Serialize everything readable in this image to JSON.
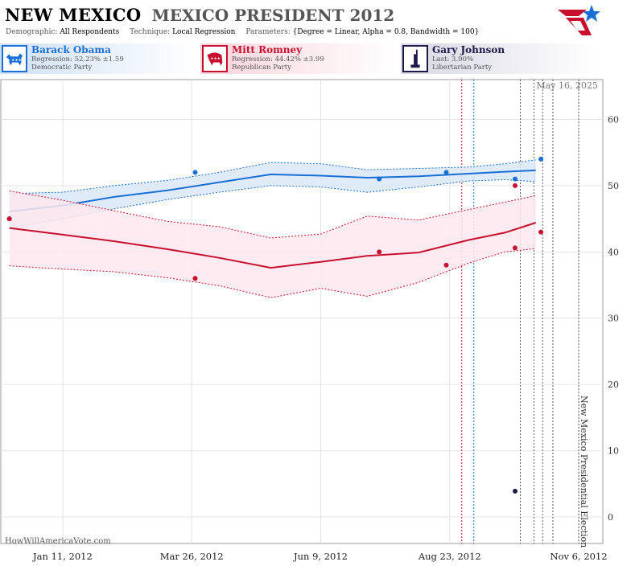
{
  "header": {
    "state": "NEW MEXICO",
    "race": "MEXICO PRESIDENT 2012",
    "demographic_label": "Demographic:",
    "demographic": "All Respondents",
    "technique_label": "Technique:",
    "technique": "Local Regression",
    "parameters_label": "Parameters:",
    "parameters": "{Degree = Linear, Alpha = 0.8, Bandwidth = 100}"
  },
  "candidates": [
    {
      "name": "Barack Obama",
      "line1": "Regression: 52.23% ±1.59",
      "line2": "Democratic Party",
      "color": "#1a6fd6",
      "icon": "donkey-icon"
    },
    {
      "name": "Mitt Romney",
      "line1": "Regression: 44.42% ±3.99",
      "line2": "Republican Party",
      "color": "#c8102e",
      "icon": "elephant-icon"
    },
    {
      "name": "Gary Johnson",
      "line1": "Last: 3.90%",
      "line2": "Libertarian Party",
      "color": "#1c1a4a",
      "icon": "liberty-statue-icon"
    }
  ],
  "credit": "HowWillAmericaVote.com",
  "chart_data": {
    "type": "line",
    "title": "MEXICO PRESIDENT 2012",
    "xlabel": "",
    "ylabel": "",
    "ylim": [
      -4,
      66
    ],
    "y_ticks": [
      0,
      10,
      20,
      30,
      40,
      50,
      60
    ],
    "x_ticks": [
      "Jan 11, 2012",
      "Mar 26, 2012",
      "Jun 9, 2012",
      "Aug 23, 2012",
      "Nov 6, 2012"
    ],
    "x_range": [
      "2011-12-06",
      "2012-11-20"
    ],
    "grid": true,
    "date_annotation": "May 16, 2025",
    "event_label": "New Mexico Presidential Election",
    "event_date": "2012-11-06",
    "convention_lines": [
      {
        "date": "2012-08-30",
        "color": "#c8102e"
      },
      {
        "date": "2012-09-06",
        "color": "#1a6fd6"
      }
    ],
    "debate_lines": [
      "2012-10-03",
      "2012-10-11",
      "2012-10-16",
      "2012-10-22"
    ],
    "series": [
      {
        "name": "Barack Obama",
        "color": "#1a6fd6",
        "fill": "#dbe8f8",
        "regression": [
          [
            "2011-12-11",
            46.1
          ],
          [
            "2012-01-11",
            47.0
          ],
          [
            "2012-02-10",
            48.3
          ],
          [
            "2012-03-12",
            49.3
          ],
          [
            "2012-04-11",
            50.5
          ],
          [
            "2012-05-11",
            51.7
          ],
          [
            "2012-06-09",
            51.5
          ],
          [
            "2012-07-06",
            51.2
          ],
          [
            "2012-08-05",
            51.4
          ],
          [
            "2012-09-03",
            51.8
          ],
          [
            "2012-09-24",
            52.1
          ],
          [
            "2012-10-12",
            52.3
          ]
        ],
        "upper": [
          [
            "2011-12-11",
            48.8
          ],
          [
            "2012-01-11",
            49.0
          ],
          [
            "2012-02-10",
            50.0
          ],
          [
            "2012-03-12",
            50.8
          ],
          [
            "2012-04-11",
            52.0
          ],
          [
            "2012-05-11",
            53.5
          ],
          [
            "2012-06-09",
            53.3
          ],
          [
            "2012-07-06",
            52.4
          ],
          [
            "2012-08-05",
            52.6
          ],
          [
            "2012-09-03",
            52.8
          ],
          [
            "2012-09-24",
            53.3
          ],
          [
            "2012-10-12",
            53.9
          ]
        ],
        "lower": [
          [
            "2011-12-11",
            43.6
          ],
          [
            "2012-01-11",
            45.0
          ],
          [
            "2012-02-10",
            46.5
          ],
          [
            "2012-03-12",
            47.9
          ],
          [
            "2012-04-11",
            49.0
          ],
          [
            "2012-05-11",
            50.0
          ],
          [
            "2012-06-09",
            49.8
          ],
          [
            "2012-07-06",
            49.0
          ],
          [
            "2012-08-05",
            49.8
          ],
          [
            "2012-09-03",
            50.7
          ],
          [
            "2012-09-24",
            50.9
          ],
          [
            "2012-10-12",
            50.6
          ]
        ],
        "polls": [
          [
            "2011-12-11",
            45.0
          ],
          [
            "2012-03-28",
            52.0
          ],
          [
            "2012-07-13",
            51.0
          ],
          [
            "2012-08-21",
            52.0
          ],
          [
            "2012-09-30",
            51.0
          ],
          [
            "2012-10-15",
            54.0
          ]
        ]
      },
      {
        "name": "Mitt Romney",
        "color": "#c8102e",
        "fill": "#fde8ee",
        "regression": [
          [
            "2011-12-11",
            43.6
          ],
          [
            "2012-01-11",
            42.6
          ],
          [
            "2012-02-10",
            41.6
          ],
          [
            "2012-03-12",
            40.4
          ],
          [
            "2012-04-11",
            39.1
          ],
          [
            "2012-05-11",
            37.6
          ],
          [
            "2012-06-09",
            38.5
          ],
          [
            "2012-07-06",
            39.4
          ],
          [
            "2012-08-05",
            39.9
          ],
          [
            "2012-09-03",
            41.8
          ],
          [
            "2012-09-24",
            42.9
          ],
          [
            "2012-10-12",
            44.4
          ]
        ],
        "upper": [
          [
            "2011-12-11",
            49.2
          ],
          [
            "2012-01-11",
            47.8
          ],
          [
            "2012-02-10",
            46.2
          ],
          [
            "2012-03-12",
            44.6
          ],
          [
            "2012-04-11",
            43.8
          ],
          [
            "2012-05-11",
            42.1
          ],
          [
            "2012-06-09",
            42.7
          ],
          [
            "2012-07-06",
            45.4
          ],
          [
            "2012-08-05",
            44.8
          ],
          [
            "2012-09-03",
            46.4
          ],
          [
            "2012-09-24",
            47.5
          ],
          [
            "2012-10-12",
            48.5
          ]
        ],
        "lower": [
          [
            "2011-12-11",
            37.9
          ],
          [
            "2012-01-11",
            37.4
          ],
          [
            "2012-02-10",
            37.0
          ],
          [
            "2012-03-12",
            36.1
          ],
          [
            "2012-04-11",
            34.9
          ],
          [
            "2012-05-11",
            33.1
          ],
          [
            "2012-06-09",
            34.5
          ],
          [
            "2012-07-06",
            33.3
          ],
          [
            "2012-08-05",
            35.4
          ],
          [
            "2012-09-03",
            38.3
          ],
          [
            "2012-09-24",
            40.0
          ],
          [
            "2012-10-12",
            40.5
          ]
        ],
        "polls": [
          [
            "2011-12-11",
            45.0
          ],
          [
            "2012-03-28",
            36.0
          ],
          [
            "2012-07-13",
            40.0
          ],
          [
            "2012-08-21",
            38.0
          ],
          [
            "2012-09-30",
            50.0
          ],
          [
            "2012-09-30",
            40.6
          ],
          [
            "2012-10-15",
            43.0
          ]
        ]
      },
      {
        "name": "Gary Johnson",
        "color": "#1c1a4a",
        "polls": [
          [
            "2012-09-30",
            3.9
          ]
        ]
      }
    ]
  }
}
